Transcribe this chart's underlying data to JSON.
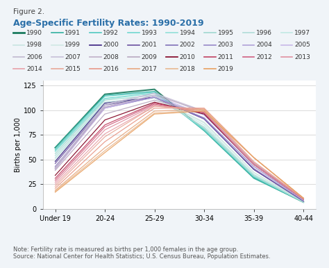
{
  "title_line1": "Figure 2.",
  "title_line2": "Age-Specific Fertility Rates: 1990-2019",
  "ylabel": "Births per 1,000",
  "x_labels": [
    "Under 19",
    "20-24",
    "25-29",
    "30-34",
    "35-39",
    "40-44"
  ],
  "ylim": [
    0,
    130
  ],
  "yticks": [
    0,
    25,
    50,
    75,
    100,
    125
  ],
  "note": "Note: Fertility rate is measured as births per 1,000 females in the age group.\nSource: National Center for Health Statistics; U.S. Census Bureau, Population Estimates.",
  "background_color": "#f0f4f8",
  "plot_bg": "#ffffff",
  "years": [
    1990,
    1991,
    1992,
    1993,
    1994,
    1995,
    1996,
    1997,
    1998,
    1999,
    2000,
    2001,
    2002,
    2003,
    2004,
    2005,
    2006,
    2007,
    2008,
    2009,
    2010,
    2011,
    2012,
    2013,
    2014,
    2015,
    2016,
    2017,
    2018,
    2019
  ],
  "colors": {
    "1990": "#1a7a5e",
    "1991": "#30b0a0",
    "1992": "#50c8c0",
    "1993": "#70d8d0",
    "1994": "#90e0d8",
    "1995": "#a0d8d0",
    "1996": "#b0dcd8",
    "1997": "#c0e8e4",
    "1998": "#c8e4e0",
    "1999": "#d0e8e4",
    "2000": "#3a2080",
    "2001": "#6a50a0",
    "2002": "#8070b8",
    "2003": "#9888c8",
    "2004": "#b0a0d8",
    "2005": "#c8b8e8",
    "2006": "#c0b8d0",
    "2007": "#c8c0d8",
    "2008": "#c0b0c8",
    "2009": "#b8a8c0",
    "2010": "#800020",
    "2011": "#c04060",
    "2012": "#d06080",
    "2013": "#e090a0",
    "2014": "#e8a0a8",
    "2015": "#e8a898",
    "2016": "#e89888",
    "2017": "#e8a880",
    "2018": "#e8b890",
    "2019": "#e8a060"
  },
  "data": {
    "1990": [
      62,
      116,
      121,
      80,
      32,
      7
    ],
    "1991": [
      62,
      115,
      119,
      79,
      31,
      7
    ],
    "1992": [
      60,
      114,
      118,
      80,
      32,
      7
    ],
    "1993": [
      59,
      112,
      117,
      80,
      33,
      7
    ],
    "1994": [
      58,
      111,
      117,
      81,
      33,
      7
    ],
    "1995": [
      56,
      110,
      115,
      82,
      34,
      7
    ],
    "1996": [
      54,
      108,
      113,
      83,
      35,
      7
    ],
    "1997": [
      52,
      107,
      113,
      85,
      35,
      8
    ],
    "1998": [
      51,
      106,
      113,
      87,
      37,
      8
    ],
    "1999": [
      49,
      106,
      112,
      88,
      37,
      8
    ],
    "2000": [
      48,
      107,
      113,
      91,
      40,
      8
    ],
    "2001": [
      46,
      105,
      113,
      92,
      40,
      8
    ],
    "2002": [
      43,
      103,
      113,
      91,
      41,
      8
    ],
    "2003": [
      42,
      102,
      113,
      92,
      43,
      9
    ],
    "2004": [
      41,
      102,
      113,
      95,
      45,
      9
    ],
    "2005": [
      40,
      102,
      115,
      95,
      46,
      9
    ],
    "2006": [
      41,
      105,
      117,
      97,
      47,
      9
    ],
    "2007": [
      42,
      106,
      117,
      99,
      47,
      10
    ],
    "2008": [
      41,
      103,
      115,
      99,
      47,
      10
    ],
    "2009": [
      39,
      96,
      110,
      97,
      46,
      10
    ],
    "2010": [
      34,
      90,
      108,
      96,
      45,
      10
    ],
    "2011": [
      31,
      85,
      107,
      97,
      45,
      10
    ],
    "2012": [
      29,
      83,
      106,
      98,
      45,
      10
    ],
    "2013": [
      27,
      80,
      105,
      98,
      45,
      10
    ],
    "2014": [
      25,
      76,
      104,
      100,
      47,
      11
    ],
    "2015": [
      23,
      73,
      104,
      101,
      48,
      11
    ],
    "2016": [
      21,
      68,
      102,
      102,
      52,
      11
    ],
    "2017": [
      19,
      62,
      99,
      101,
      52,
      11
    ],
    "2018": [
      18,
      59,
      97,
      100,
      52,
      11
    ],
    "2019": [
      17,
      57,
      96,
      99,
      52,
      11
    ]
  }
}
